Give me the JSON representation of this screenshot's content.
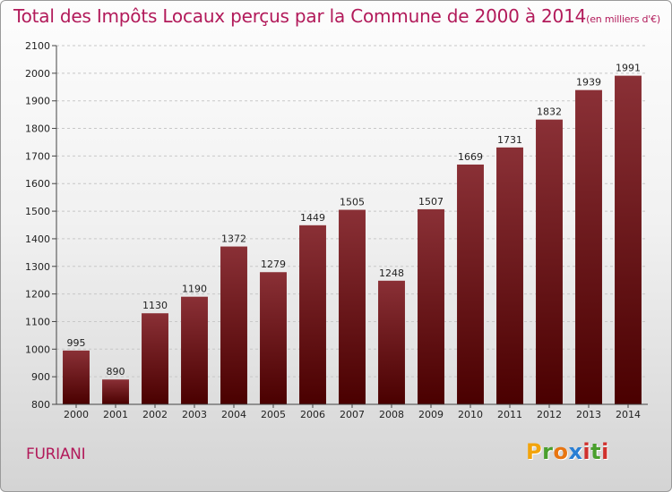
{
  "title": "Total des Impôts Locaux perçus par la Commune de 2000 à 2014",
  "title_unit": "(en milliers d'€)",
  "commune": "FURIANI",
  "brand": {
    "letters": [
      "P",
      "r",
      "o",
      "x",
      "i",
      "t",
      "i"
    ],
    "colors": [
      "#f2a40c",
      "#4a9f2d",
      "#e87511",
      "#2a7fd4",
      "#d0312d",
      "#4a9f2d",
      "#d0312d"
    ]
  },
  "chart_data": {
    "type": "bar",
    "title": "Total des Impôts Locaux perçus par la Commune de 2000 à 2014",
    "xlabel": "",
    "ylabel": "",
    "categories": [
      "2000",
      "2001",
      "2002",
      "2003",
      "2004",
      "2005",
      "2006",
      "2007",
      "2008",
      "2009",
      "2010",
      "2011",
      "2012",
      "2013",
      "2014"
    ],
    "values": [
      995,
      890,
      1130,
      1190,
      1372,
      1279,
      1449,
      1505,
      1248,
      1507,
      1669,
      1731,
      1832,
      1939,
      1991
    ],
    "ylim": [
      800,
      2100
    ],
    "yticks": [
      800,
      900,
      1000,
      1100,
      1200,
      1300,
      1400,
      1500,
      1600,
      1700,
      1800,
      1900,
      2000,
      2100
    ],
    "grid": true,
    "bar_color_top": "#8a3036",
    "bar_color_bottom": "#4a0000"
  }
}
